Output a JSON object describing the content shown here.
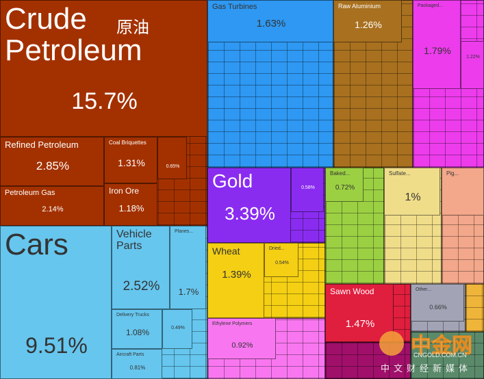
{
  "chart_data": {
    "type": "treemap",
    "items": [
      {
        "name": "Crude Petroleum",
        "value": 15.7,
        "value_label": "15.7%"
      },
      {
        "name": "Refined Petroleum",
        "value": 2.85,
        "value_label": "2.85%"
      },
      {
        "name": "Coal Briquettes",
        "value": 1.31,
        "value_label": "1.31%"
      },
      {
        "value": 0.65,
        "value_label": "0.65%"
      },
      {
        "name": "Petroleum Gas",
        "value": 2.14,
        "value_label": "2.14%"
      },
      {
        "name": "Iron Ore",
        "value": 1.18,
        "value_label": "1.18%"
      },
      {
        "name": "Cars",
        "value": 9.51,
        "value_label": "9.51%"
      },
      {
        "name": "Vehicle Parts",
        "value": 2.52,
        "value_label": "2.52%"
      },
      {
        "name": "Planes...",
        "value": 1.7,
        "value_label": "1.7%"
      },
      {
        "name": "Delivery Trucks",
        "value": 1.08,
        "value_label": "1.08%"
      },
      {
        "value": 0.49,
        "value_label": "0.49%"
      },
      {
        "name": "Aircraft Parts",
        "value": 0.81,
        "value_label": "0.81%"
      },
      {
        "name": "Gas Turbines",
        "value": 1.63,
        "value_label": "1.63%"
      },
      {
        "name": "Raw Aluminium",
        "value": 1.26,
        "value_label": "1.26%"
      },
      {
        "name": "Packaged...",
        "value": 1.79,
        "value_label": "1.79%"
      },
      {
        "value": 1.22,
        "value_label": "1.22%"
      },
      {
        "name": "Gold",
        "value": 3.39,
        "value_label": "3.39%"
      },
      {
        "value": 0.58,
        "value_label": "0.58%"
      },
      {
        "name": "Baked...",
        "value": 0.72,
        "value_label": "0.72%"
      },
      {
        "name": "Sulfate...",
        "value": 1,
        "value_label": "1%"
      },
      {
        "name": "Pig..."
      },
      {
        "name": "Wheat",
        "value": 1.39,
        "value_label": "1.39%"
      },
      {
        "name": "Dried...",
        "value": 0.54,
        "value_label": "0.54%"
      },
      {
        "name": "Sawn Wood",
        "value": 1.47,
        "value_label": "1.47%"
      },
      {
        "name": "Other...",
        "value": 0.66,
        "value_label": "0.66%"
      },
      {
        "name": "Ethylene Polymers",
        "value": 0.92,
        "value_label": "0.92%"
      }
    ]
  },
  "crude_chinese": "原油",
  "watermark": {
    "title": "中金网",
    "url": "CNGOLD.COM.CN",
    "slogan": "中文财经新媒体"
  }
}
